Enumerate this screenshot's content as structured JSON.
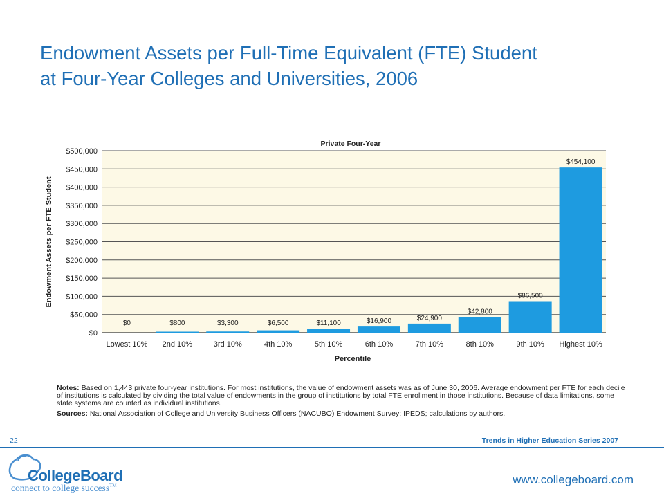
{
  "title": {
    "line1": "Endowment Assets per Full-Time Equivalent (FTE) Student",
    "line2": "at Four-Year Colleges and Universities, 2006"
  },
  "chart_data": {
    "type": "bar",
    "title": "Private Four-Year",
    "xlabel": "Percentile",
    "ylabel": "Endowment Assets per FTE Student",
    "categories": [
      "Lowest 10%",
      "2nd 10%",
      "3rd 10%",
      "4th 10%",
      "5th 10%",
      "6th 10%",
      "7th 10%",
      "8th 10%",
      "9th 10%",
      "Highest 10%"
    ],
    "values": [
      0,
      800,
      3300,
      6500,
      11100,
      16900,
      24900,
      42800,
      86500,
      454100
    ],
    "value_labels": [
      "$0",
      "$800",
      "$3,300",
      "$6,500",
      "$11,100",
      "$16,900",
      "$24,900",
      "$42,800",
      "$86,500",
      "$454,100"
    ],
    "ylim": [
      0,
      500000
    ],
    "yticks": [
      0,
      50000,
      100000,
      150000,
      200000,
      250000,
      300000,
      350000,
      400000,
      450000,
      500000
    ],
    "ytick_labels": [
      "$0",
      "$50,000",
      "$100,000",
      "$150,000",
      "$200,000",
      "$250,000",
      "$300,000",
      "$350,000",
      "$400,000",
      "$450,000",
      "$500,000"
    ],
    "grid": true,
    "bar_color": "#1e9be0",
    "plot_background": "#fdf9e6"
  },
  "notes": {
    "notes_label": "Notes:",
    "notes_text": "Based on 1,443 private four-year institutions. For most institutions, the value of endowment assets was as of June 30, 2006. Average endowment per FTE for each decile of institutions is calculated by dividing the total value of endowments in the group of institutions by total FTE enrollment in those institutions. Because of data limitations, some state systems are counted as individual institutions.",
    "sources_label": "Sources:",
    "sources_text": "National Association of College and University Business Officers (NACUBO) Endowment Survey; IPEDS; calculations by authors."
  },
  "footer": {
    "page_number": "22",
    "series": "Trends in Higher Education Series 2007",
    "logo_name": "CollegeBoard",
    "logo_tagline": "connect to college success",
    "logo_tm": "TM",
    "website": "www.collegeboard.com"
  },
  "colors": {
    "brand_blue": "#1f6fb5",
    "bar_blue": "#1e9be0"
  }
}
